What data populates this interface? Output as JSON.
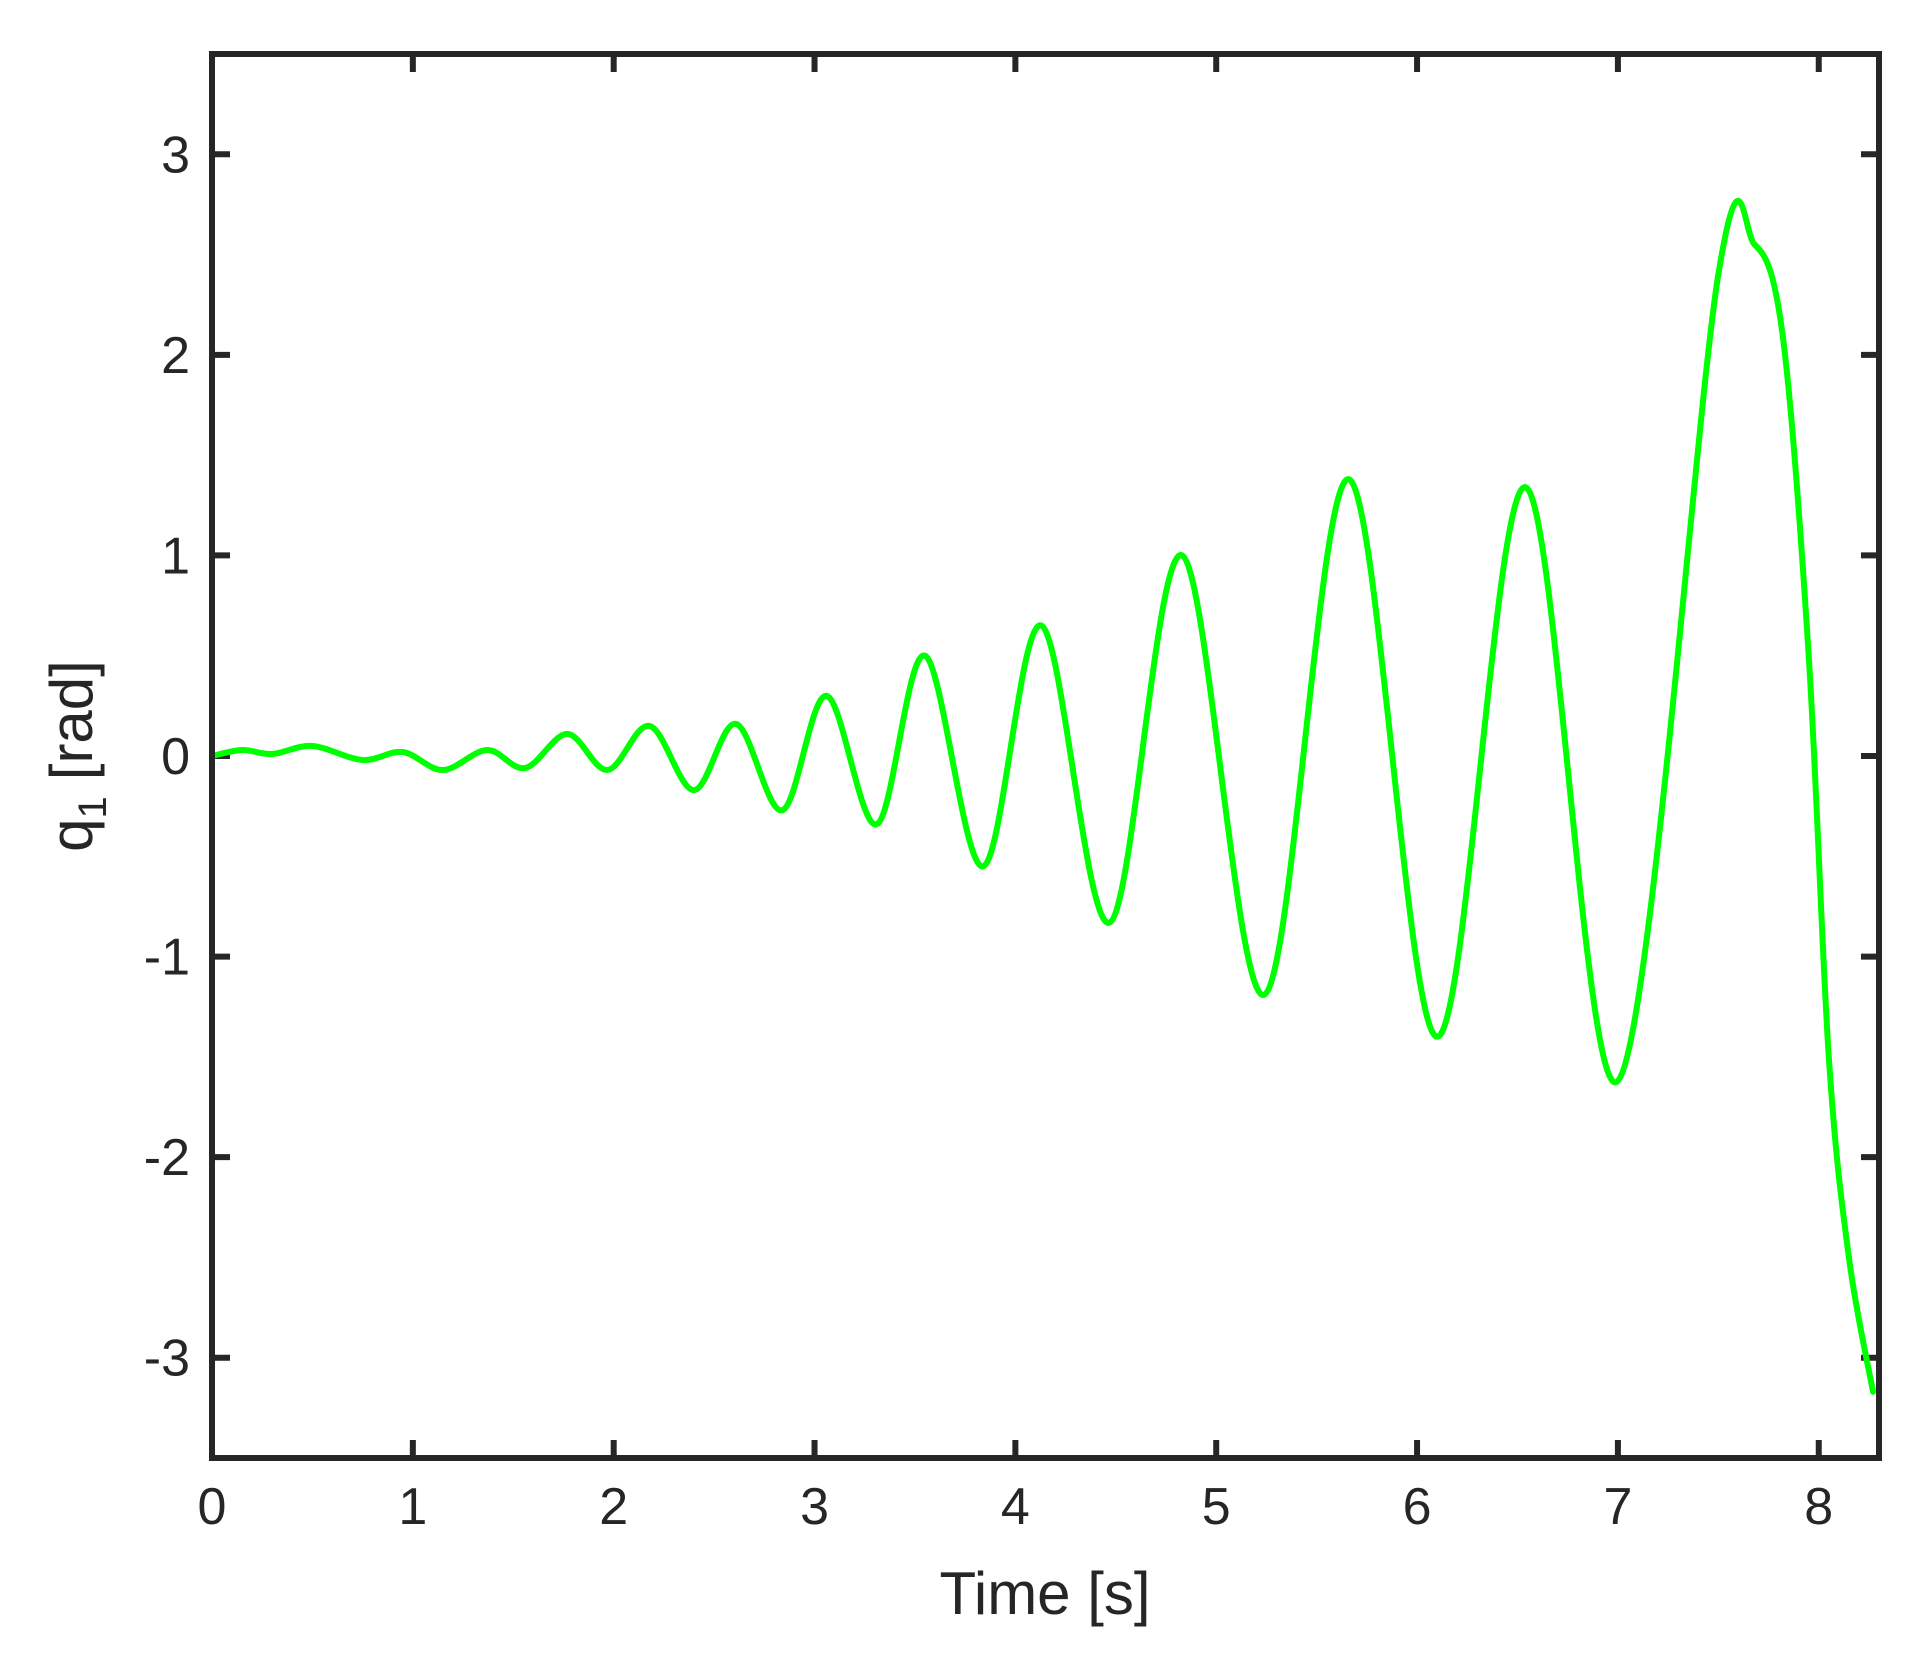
{
  "chart_data": {
    "type": "line",
    "xlabel": "Time [s]",
    "ylabel": {
      "main": "q",
      "subscript": "1",
      "unit": "[rad]"
    },
    "xlim": [
      0,
      8.3
    ],
    "ylim": [
      -3.5,
      3.5
    ],
    "xticks": [
      0,
      1,
      2,
      3,
      4,
      5,
      6,
      7,
      8
    ],
    "yticks": [
      -3,
      -2,
      -1,
      0,
      1,
      2,
      3
    ],
    "xtick_labels": [
      "0",
      "1",
      "2",
      "3",
      "4",
      "5",
      "6",
      "7",
      "8"
    ],
    "ytick_labels": [
      "-3",
      "-2",
      "-1",
      "0",
      "1",
      "2",
      "3"
    ],
    "grid": false,
    "colors": {
      "line": "#00ff00",
      "axis": "#262626"
    },
    "series": [
      {
        "points": [
          [
            0.0,
            0.0
          ],
          [
            0.15,
            0.03
          ],
          [
            0.3,
            0.01
          ],
          [
            0.5,
            0.05
          ],
          [
            0.75,
            -0.02
          ],
          [
            0.95,
            0.02
          ],
          [
            1.15,
            -0.07
          ],
          [
            1.37,
            0.03
          ],
          [
            1.56,
            -0.06
          ],
          [
            1.77,
            0.11
          ],
          [
            1.97,
            -0.07
          ],
          [
            2.18,
            0.15
          ],
          [
            2.4,
            -0.17
          ],
          [
            2.61,
            0.16
          ],
          [
            2.84,
            -0.27
          ],
          [
            3.06,
            0.3
          ],
          [
            3.31,
            -0.34
          ],
          [
            3.55,
            0.5
          ],
          [
            3.84,
            -0.55
          ],
          [
            4.13,
            0.65
          ],
          [
            4.47,
            -0.83
          ],
          [
            4.83,
            1.0
          ],
          [
            5.24,
            -1.19
          ],
          [
            5.66,
            1.38
          ],
          [
            6.1,
            -1.4
          ],
          [
            6.54,
            1.34
          ],
          [
            7.0,
            -1.62
          ],
          [
            7.5,
            2.4
          ],
          [
            7.68,
            2.55
          ],
          [
            7.82,
            2.1
          ],
          [
            7.95,
            0.5
          ],
          [
            8.05,
            -1.5
          ],
          [
            8.15,
            -2.5
          ],
          [
            8.27,
            -3.17
          ]
        ]
      }
    ]
  }
}
